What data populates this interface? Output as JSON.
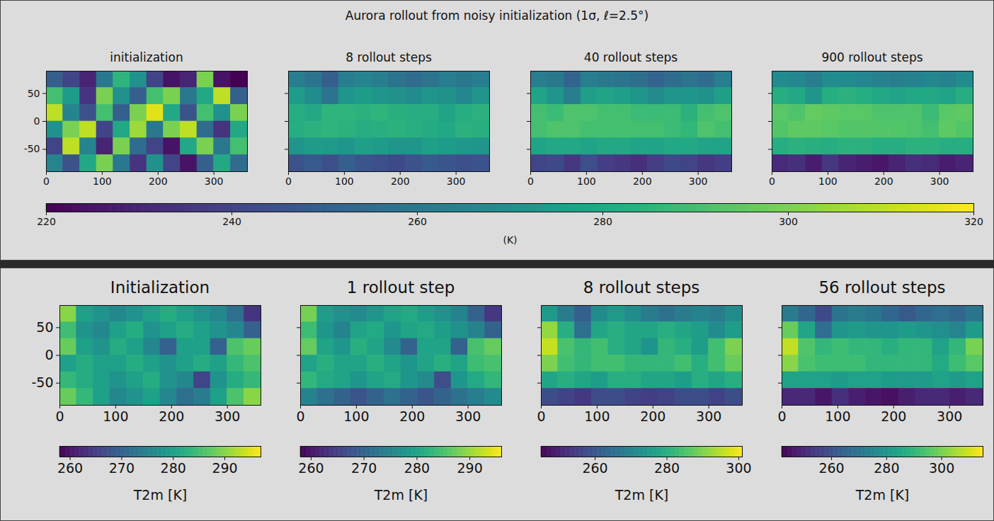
{
  "chart_data": [
    {
      "type": "heatmap",
      "color": "viridis",
      "title": "Aurora rollout from noisy initialization (1σ, ℓ=2.5°)",
      "x": [
        15,
        45,
        75,
        105,
        135,
        165,
        195,
        225,
        255,
        285,
        315,
        345
      ],
      "y": [
        75,
        45,
        15,
        -15,
        -45,
        -75
      ],
      "xlim": [
        0,
        360
      ],
      "ylim": [
        -90,
        90
      ],
      "xticks": [
        0,
        100,
        200,
        300
      ],
      "yticks": [
        -50,
        0,
        50
      ],
      "colorbar": {
        "range": [
          220,
          320
        ],
        "ticks": [
          220,
          240,
          260,
          280,
          300,
          320
        ],
        "label": "(K)"
      },
      "panels": [
        {
          "title": "initialization",
          "cells": [
            [
              250,
              240,
              230,
              260,
              285,
              270,
              240,
              225,
              230,
              300,
              225,
              220
            ],
            [
              290,
              275,
              235,
              300,
              270,
              250,
              290,
              300,
              260,
              280,
              310,
              250
            ],
            [
              310,
              265,
              245,
              290,
              250,
              300,
              315,
              280,
              245,
              290,
              270,
              300
            ],
            [
              270,
              300,
              310,
              240,
              280,
              305,
              260,
              300,
              310,
              255,
              235,
              280
            ],
            [
              240,
              310,
              265,
              230,
              300,
              255,
              240,
              225,
              280,
              300,
              260,
              290
            ],
            [
              265,
              245,
              280,
              300,
              260,
              235,
              270,
              240,
              225,
              250,
              280,
              255
            ]
          ]
        },
        {
          "title": "8 rollout steps",
          "tick_labels": "x",
          "cells": [
            [
              262,
              258,
              250,
              262,
              265,
              262,
              258,
              255,
              258,
              262,
              260,
              262
            ],
            [
              275,
              268,
              258,
              272,
              275,
              272,
              270,
              268,
              272,
              270,
              266,
              272
            ],
            [
              282,
              280,
              285,
              285,
              284,
              285,
              283,
              282,
              282,
              278,
              282,
              284
            ],
            [
              282,
              284,
              285,
              284,
              282,
              283,
              284,
              283,
              281,
              280,
              284,
              283
            ],
            [
              272,
              275,
              274,
              272,
              276,
              275,
              272,
              272,
              276,
              275,
              273,
              272
            ],
            [
              245,
              248,
              244,
              250,
              246,
              244,
              242,
              245,
              248,
              246,
              244,
              245
            ]
          ]
        },
        {
          "title": "40 rollout steps",
          "tick_labels": "x",
          "cells": [
            [
              262,
              260,
              252,
              262,
              260,
              258,
              256,
              252,
              255,
              258,
              255,
              262
            ],
            [
              278,
              272,
              262,
              276,
              278,
              276,
              272,
              268,
              272,
              272,
              270,
              276
            ],
            [
              290,
              288,
              292,
              292,
              290,
              290,
              288,
              288,
              288,
              284,
              290,
              292
            ],
            [
              290,
              292,
              292,
              290,
              290,
              290,
              290,
              290,
              288,
              286,
              292,
              290
            ],
            [
              278,
              280,
              280,
              278,
              280,
              280,
              278,
              278,
              280,
              280,
              278,
              278
            ],
            [
              240,
              242,
              236,
              244,
              238,
              236,
              234,
              238,
              242,
              240,
              236,
              238
            ]
          ]
        },
        {
          "title": "900 rollout steps",
          "tick_labels": "x",
          "cells": [
            [
              268,
              266,
              262,
              268,
              268,
              266,
              264,
              262,
              264,
              266,
              264,
              268
            ],
            [
              282,
              280,
              272,
              282,
              284,
              282,
              280,
              278,
              280,
              280,
              278,
              282
            ],
            [
              294,
              292,
              296,
              295,
              294,
              294,
              292,
              292,
              292,
              288,
              294,
              295
            ],
            [
              293,
              295,
              295,
              294,
              293,
              293,
              293,
              293,
              292,
              290,
              295,
              293
            ],
            [
              282,
              284,
              283,
              282,
              284,
              284,
              282,
              282,
              284,
              284,
              282,
              282
            ],
            [
              232,
              234,
              228,
              236,
              230,
              228,
              226,
              230,
              234,
              232,
              228,
              230
            ]
          ]
        }
      ]
    },
    {
      "type": "heatmap",
      "color": "viridis",
      "x": [
        15,
        45,
        75,
        105,
        135,
        165,
        195,
        225,
        255,
        285,
        315,
        345
      ],
      "y": [
        75,
        45,
        15,
        -15,
        -45,
        -75
      ],
      "xlim": [
        0,
        360
      ],
      "ylim": [
        -90,
        90
      ],
      "xticks": [
        0,
        100,
        200,
        300
      ],
      "yticks": [
        -50,
        0,
        50
      ],
      "panels": [
        {
          "title": "Initialization",
          "colorbar": {
            "range": [
              258,
              297
            ],
            "ticks": [
              260,
              270,
              280,
              290
            ],
            "label": "T2m [K]"
          },
          "cells": [
            [
              290,
              280,
              278,
              276,
              278,
              280,
              282,
              280,
              278,
              276,
              272,
              264
            ],
            [
              285,
              278,
              276,
              280,
              282,
              278,
              280,
              282,
              280,
              278,
              276,
              270
            ],
            [
              288,
              280,
              278,
              282,
              280,
              276,
              270,
              280,
              280,
              270,
              286,
              288
            ],
            [
              280,
              282,
              280,
              280,
              282,
              280,
              278,
              280,
              282,
              280,
              284,
              286
            ],
            [
              284,
              282,
              280,
              278,
              280,
              282,
              278,
              276,
              266,
              278,
              282,
              284
            ],
            [
              288,
              284,
              280,
              276,
              278,
              280,
              276,
              272,
              274,
              280,
              286,
              290
            ]
          ]
        },
        {
          "title": "1 rollout step",
          "tick_labels": "x",
          "colorbar": {
            "range": [
              258,
              296
            ],
            "ticks": [
              260,
              270,
              280,
              290
            ],
            "label": "T2m [K]"
          },
          "cells": [
            [
              288,
              279,
              277,
              276,
              278,
              280,
              281,
              279,
              277,
              275,
              270,
              264
            ],
            [
              284,
              278,
              275,
              280,
              281,
              278,
              280,
              281,
              279,
              277,
              275,
              270
            ],
            [
              287,
              280,
              278,
              282,
              280,
              276,
              270,
              280,
              280,
              270,
              285,
              287
            ],
            [
              280,
              282,
              280,
              280,
              282,
              280,
              278,
              280,
              282,
              280,
              284,
              285
            ],
            [
              283,
              281,
              280,
              278,
              280,
              281,
              278,
              276,
              267,
              278,
              281,
              283
            ],
            [
              275,
              272,
              270,
              268,
              270,
              272,
              270,
              268,
              270,
              272,
              274,
              276
            ]
          ]
        },
        {
          "title": "8 rollout steps",
          "tick_labels": "x",
          "colorbar": {
            "range": [
              245,
              301
            ],
            "ticks": [
              260,
              280,
              300
            ],
            "label": "T2m [K]"
          },
          "cells": [
            [
              275,
              268,
              262,
              272,
              275,
              272,
              268,
              266,
              268,
              270,
              268,
              272
            ],
            [
              292,
              280,
              265,
              278,
              280,
              278,
              278,
              280,
              278,
              276,
              272,
              276
            ],
            [
              296,
              285,
              282,
              284,
              280,
              278,
              274,
              282,
              280,
              276,
              284,
              290
            ],
            [
              290,
              284,
              282,
              284,
              284,
              282,
              282,
              282,
              284,
              280,
              284,
              288
            ],
            [
              278,
              280,
              278,
              276,
              280,
              280,
              278,
              278,
              276,
              280,
              278,
              280
            ],
            [
              258,
              256,
              254,
              258,
              258,
              256,
              255,
              256,
              258,
              258,
              256,
              258
            ]
          ]
        },
        {
          "title": "56 rollout steps",
          "tick_labels": "x",
          "colorbar": {
            "range": [
              242,
              315
            ],
            "ticks": [
              260,
              280,
              300
            ],
            "label": "T2m [K]"
          },
          "cells": [
            [
              272,
              266,
              258,
              270,
              272,
              270,
              266,
              262,
              266,
              268,
              266,
              270
            ],
            [
              298,
              285,
              268,
              280,
              282,
              280,
              280,
              282,
              280,
              278,
              275,
              282
            ],
            [
              308,
              295,
              290,
              292,
              290,
              290,
              288,
              290,
              290,
              284,
              290,
              300
            ],
            [
              302,
              294,
              292,
              292,
              292,
              290,
              290,
              290,
              290,
              286,
              292,
              296
            ],
            [
              284,
              284,
              284,
              282,
              284,
              284,
              282,
              282,
              282,
              284,
              282,
              284
            ],
            [
              250,
              250,
              246,
              252,
              248,
              246,
              245,
              248,
              250,
              250,
              248,
              250
            ]
          ]
        }
      ]
    }
  ]
}
